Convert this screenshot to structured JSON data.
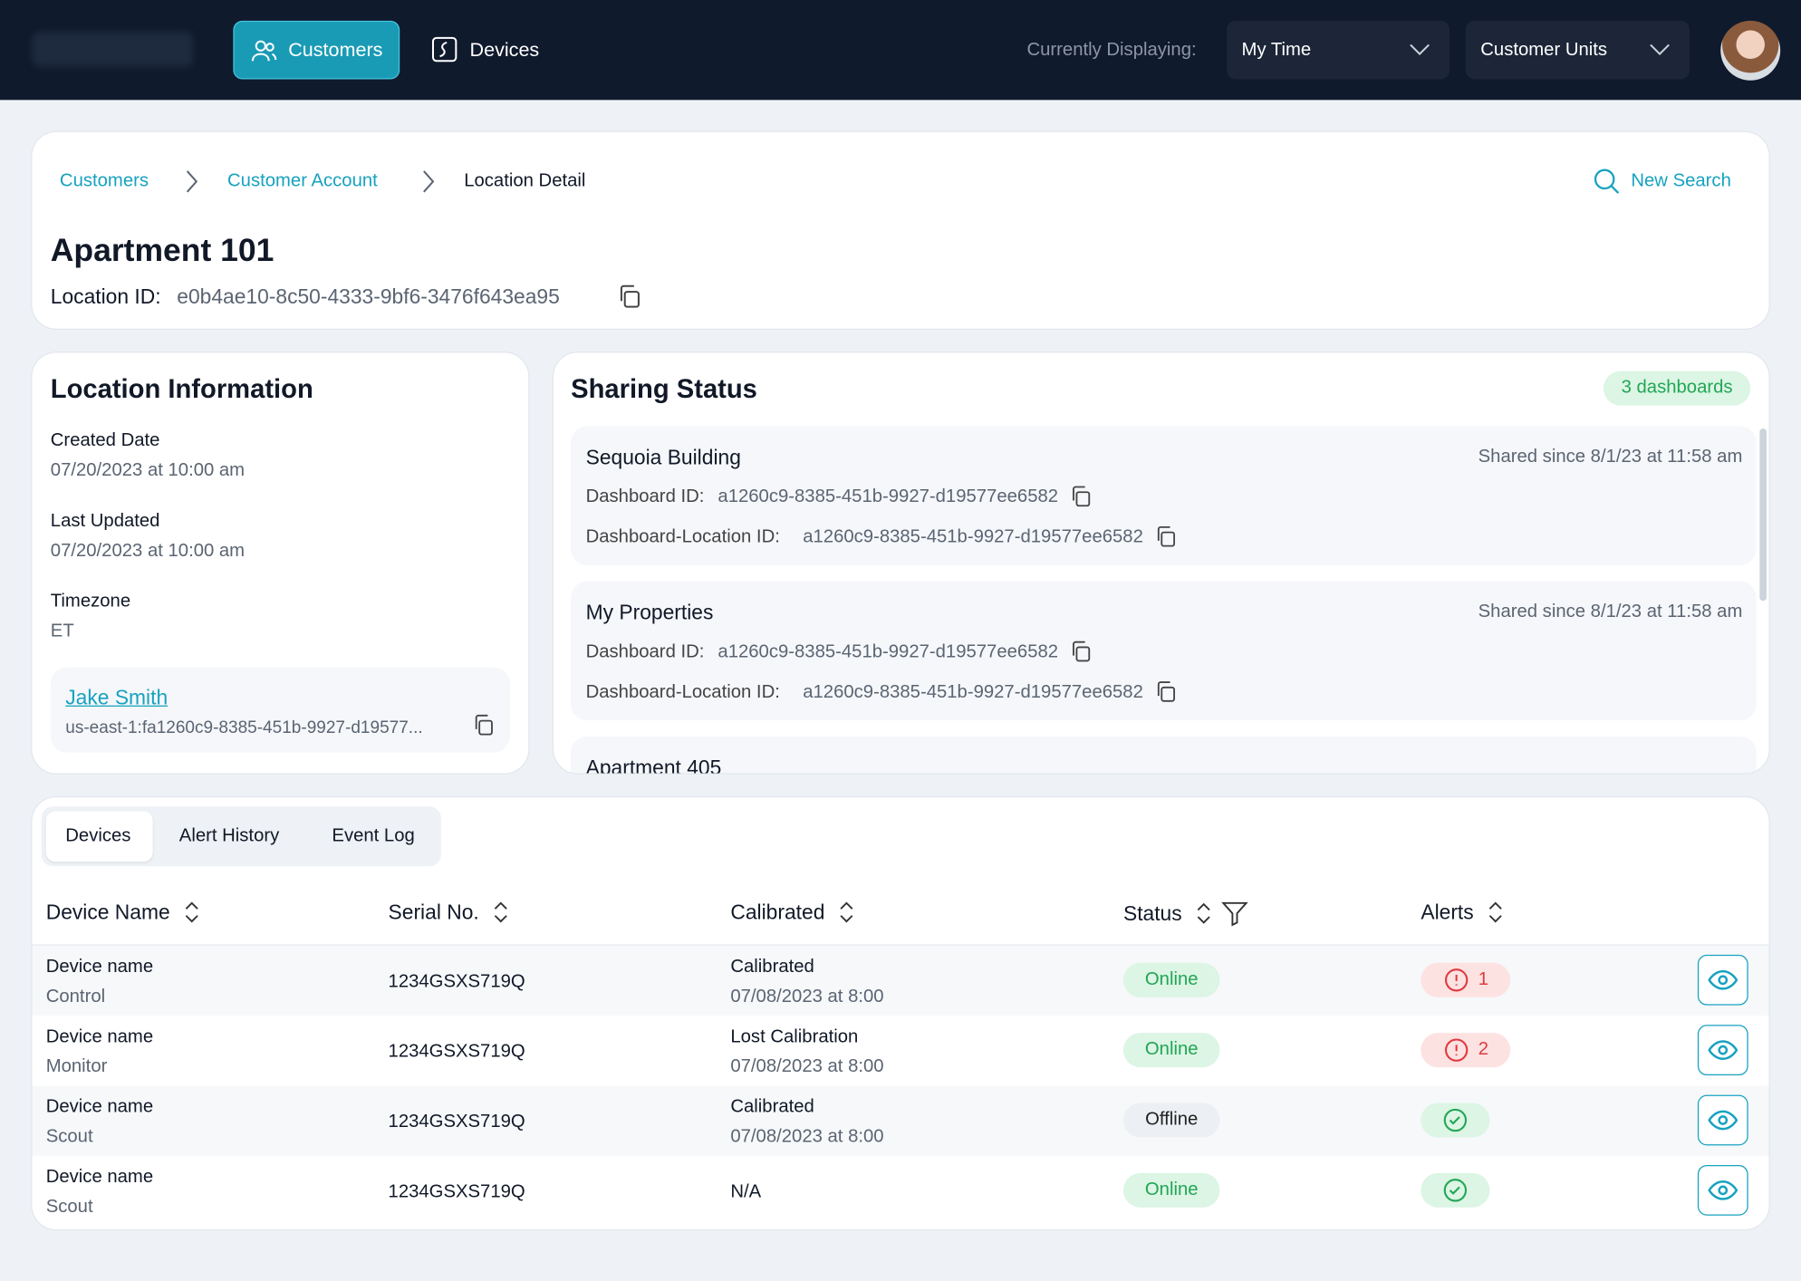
{
  "nav": {
    "tabs": [
      "Customers",
      "Devices"
    ],
    "displaying_label": "Currently Displaying:",
    "selects": [
      "My Time",
      "Customer Units"
    ]
  },
  "breadcrumb": [
    "Customers",
    "Customer Account",
    "Location Detail"
  ],
  "new_search": "New Search",
  "location": {
    "title": "Apartment 101",
    "id_label": "Location ID:",
    "id": "e0b4ae10-8c50-4333-9bf6-3476f643ea95"
  },
  "location_info": {
    "title": "Location Information",
    "fields": [
      {
        "label": "Created Date",
        "value": "07/20/2023 at 10:00 am"
      },
      {
        "label": "Last Updated",
        "value": "07/20/2023 at 10:00 am"
      },
      {
        "label": "Timezone",
        "value": "ET"
      }
    ],
    "owner": {
      "name": "Jake Smith",
      "id": "us-east-1:fa1260c9-8385-451b-9927-d19577..."
    }
  },
  "sharing": {
    "title": "Sharing Status",
    "badge": "3 dashboards",
    "dashboards": [
      {
        "name": "Sequoia Building",
        "shared": "Shared since 8/1/23 at 11:58 am",
        "dashboard_id_label": "Dashboard ID:",
        "dashboard_id": "a1260c9-8385-451b-9927-d19577ee6582",
        "location_id_label": "Dashboard-Location ID:",
        "location_id": "a1260c9-8385-451b-9927-d19577ee6582"
      },
      {
        "name": "My Properties",
        "shared": "Shared since 8/1/23 at 11:58 am",
        "dashboard_id_label": "Dashboard ID:",
        "dashboard_id": "a1260c9-8385-451b-9927-d19577ee6582",
        "location_id_label": "Dashboard-Location ID:",
        "location_id": "a1260c9-8385-451b-9927-d19577ee6582"
      },
      {
        "name": "Apartment 405"
      }
    ]
  },
  "tabs": [
    "Devices",
    "Alert History",
    "Event Log"
  ],
  "table": {
    "columns": [
      "Device Name",
      "Serial No.",
      "Calibrated",
      "Status",
      "Alerts"
    ],
    "rows": [
      {
        "name": "Device name",
        "type": "Control",
        "serial": "1234GSXS719Q",
        "calibration": "Calibrated",
        "calibrated_at": "07/08/2023 at 8:00",
        "status": "Online",
        "alerts": "1"
      },
      {
        "name": "Device name",
        "type": "Monitor",
        "serial": "1234GSXS719Q",
        "calibration": "Lost Calibration",
        "calibrated_at": "07/08/2023 at 8:00",
        "status": "Online",
        "alerts": "2"
      },
      {
        "name": "Device name",
        "type": "Scout",
        "serial": "1234GSXS719Q",
        "calibration": "Calibrated",
        "calibrated_at": "07/08/2023 at 8:00",
        "status": "Offline"
      },
      {
        "name": "Device name",
        "type": "Scout",
        "serial": "1234GSXS719Q",
        "calibration": "N/A",
        "status": "Online"
      }
    ]
  }
}
